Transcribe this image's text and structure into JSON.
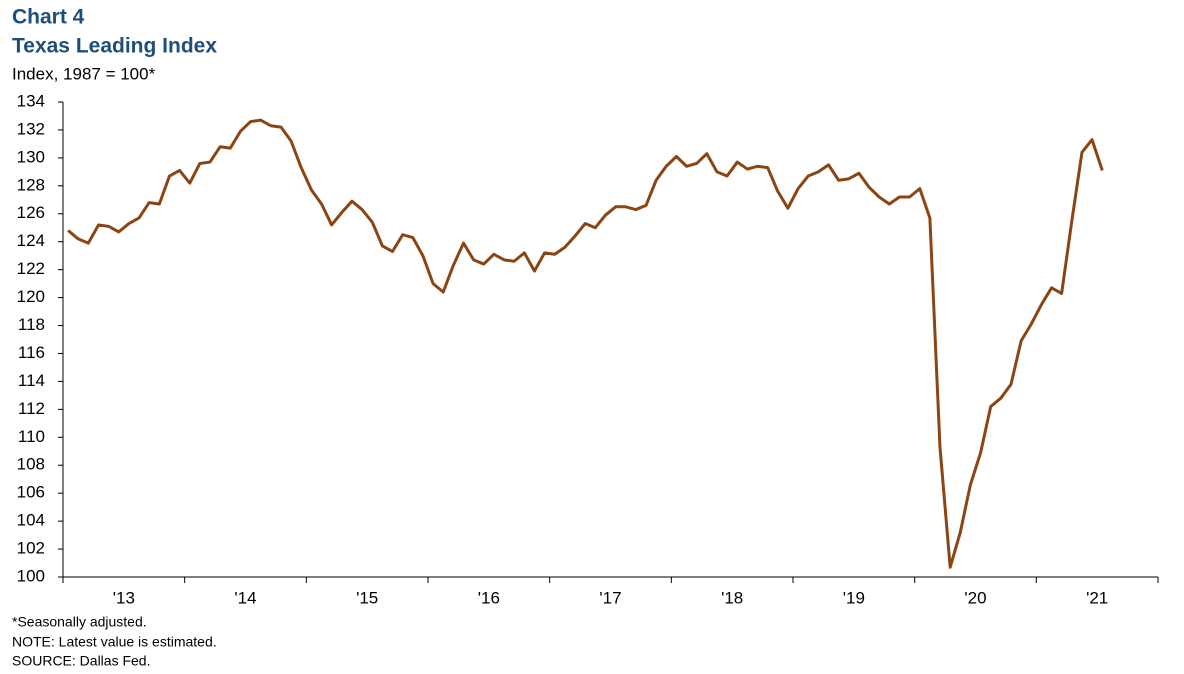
{
  "chart_data": {
    "type": "line",
    "title": "Chart 4",
    "subtitle": "Texas Leading Index",
    "y_axis_label": "Index, 1987 = 100*",
    "notes": [
      "*Seasonally adjusted.",
      "NOTE:  Latest value is estimated.",
      "SOURCE:  Dallas Fed."
    ],
    "x": [
      2013.042,
      2013.125,
      2013.208,
      2013.292,
      2013.375,
      2013.458,
      2013.542,
      2013.625,
      2013.708,
      2013.792,
      2013.875,
      2013.958,
      2014.042,
      2014.125,
      2014.208,
      2014.292,
      2014.375,
      2014.458,
      2014.542,
      2014.625,
      2014.708,
      2014.792,
      2014.875,
      2014.958,
      2015.042,
      2015.125,
      2015.208,
      2015.292,
      2015.375,
      2015.458,
      2015.542,
      2015.625,
      2015.708,
      2015.792,
      2015.875,
      2015.958,
      2016.042,
      2016.125,
      2016.208,
      2016.292,
      2016.375,
      2016.458,
      2016.542,
      2016.625,
      2016.708,
      2016.792,
      2016.875,
      2016.958,
      2017.042,
      2017.125,
      2017.208,
      2017.292,
      2017.375,
      2017.458,
      2017.542,
      2017.625,
      2017.708,
      2017.792,
      2017.875,
      2017.958,
      2018.042,
      2018.125,
      2018.208,
      2018.292,
      2018.375,
      2018.458,
      2018.542,
      2018.625,
      2018.708,
      2018.792,
      2018.875,
      2018.958,
      2019.042,
      2019.125,
      2019.208,
      2019.292,
      2019.375,
      2019.458,
      2019.542,
      2019.625,
      2019.708,
      2019.792,
      2019.875,
      2019.958,
      2020.042,
      2020.125,
      2020.208,
      2020.292,
      2020.375,
      2020.458,
      2020.542,
      2020.625,
      2020.708,
      2020.792,
      2020.875,
      2020.958,
      2021.042,
      2021.125,
      2021.208,
      2021.292,
      2021.375,
      2021.458,
      2021.542
    ],
    "series": [
      {
        "name": "Texas Leading Index",
        "color": "#8b4513",
        "values": [
          124.8,
          124.2,
          123.9,
          125.2,
          125.1,
          124.7,
          125.3,
          125.7,
          126.8,
          126.7,
          128.7,
          129.1,
          128.2,
          129.6,
          129.7,
          130.8,
          130.7,
          131.9,
          132.6,
          132.7,
          132.3,
          132.2,
          131.2,
          129.3,
          127.7,
          126.7,
          125.2,
          126.1,
          126.9,
          126.3,
          125.4,
          123.7,
          123.3,
          124.5,
          124.3,
          123.0,
          121.0,
          120.4,
          122.3,
          123.9,
          122.7,
          122.4,
          123.1,
          122.7,
          122.6,
          123.2,
          121.9,
          123.2,
          123.1,
          123.6,
          124.4,
          125.3,
          125.0,
          125.9,
          126.5,
          126.5,
          126.3,
          126.6,
          128.4,
          129.4,
          130.1,
          129.4,
          129.6,
          130.3,
          129.0,
          128.7,
          129.7,
          129.2,
          129.4,
          129.3,
          127.6,
          126.4,
          127.8,
          128.7,
          129.0,
          129.5,
          128.4,
          128.5,
          128.9,
          127.9,
          127.2,
          126.7,
          127.2,
          127.2,
          127.8,
          125.7,
          109.3,
          100.7,
          103.2,
          106.6,
          108.9,
          112.2,
          112.8,
          113.8,
          116.9,
          118.1,
          119.5,
          120.7,
          120.3,
          125.5,
          130.4,
          131.3,
          129.1
        ]
      }
    ],
    "xlim": [
      2013,
      2022
    ],
    "xticks": [
      {
        "value": 2013.5,
        "label": "'13"
      },
      {
        "value": 2014.5,
        "label": "'14"
      },
      {
        "value": 2015.5,
        "label": "'15"
      },
      {
        "value": 2016.5,
        "label": "'16"
      },
      {
        "value": 2017.5,
        "label": "'17"
      },
      {
        "value": 2018.5,
        "label": "'18"
      },
      {
        "value": 2019.5,
        "label": "'19"
      },
      {
        "value": 2020.5,
        "label": "'20"
      },
      {
        "value": 2021.5,
        "label": "'21"
      }
    ],
    "ylim": [
      100,
      134
    ],
    "yticks": [
      100,
      102,
      104,
      106,
      108,
      110,
      112,
      114,
      116,
      118,
      120,
      122,
      124,
      126,
      128,
      130,
      132,
      134
    ],
    "grid": false
  }
}
